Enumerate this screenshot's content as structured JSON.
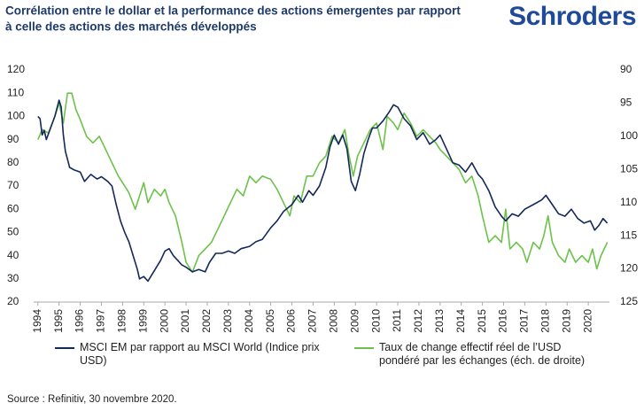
{
  "brand": "Schroders",
  "source": "Source : Refinitiv, 30 novembre 2020.",
  "chart_data": {
    "type": "line",
    "title": [
      "Corrélation entre le dollar et la performance des actions émergentes par rapport",
      "à celle des actions des marchés développés"
    ],
    "xlim": [
      1993.8,
      2021.0
    ],
    "xticks": [
      1994,
      1995,
      1996,
      1997,
      1998,
      1999,
      2000,
      2001,
      2002,
      2003,
      2004,
      2005,
      2006,
      2007,
      2008,
      2009,
      2010,
      2011,
      2012,
      2013,
      2014,
      2015,
      2016,
      2017,
      2018,
      2019,
      2020
    ],
    "ylim": [
      20,
      120
    ],
    "yticks": [
      20,
      30,
      40,
      50,
      60,
      70,
      80,
      90,
      100,
      110,
      120
    ],
    "y2lim": [
      125,
      90
    ],
    "y2ticks": [
      90,
      95,
      100,
      105,
      110,
      115,
      120,
      125
    ],
    "grid": false,
    "series": [
      {
        "name": "MSCI EM par rapport au MSCI World (Indice prix USD)",
        "color": "#14285a",
        "axis": "y",
        "x": [
          1994.0,
          1994.1,
          1994.2,
          1994.3,
          1994.4,
          1994.6,
          1994.8,
          1995.0,
          1995.1,
          1995.2,
          1995.3,
          1995.5,
          1995.7,
          1996.0,
          1996.2,
          1996.5,
          1996.8,
          1997.0,
          1997.3,
          1997.5,
          1997.7,
          1997.9,
          1998.1,
          1998.3,
          1998.5,
          1998.7,
          1998.8,
          1999.0,
          1999.2,
          1999.4,
          1999.6,
          1999.8,
          2000.0,
          2000.2,
          2000.4,
          2000.6,
          2000.8,
          2001.0,
          2001.3,
          2001.6,
          2001.9,
          2002.1,
          2002.4,
          2002.7,
          2003.0,
          2003.3,
          2003.6,
          2004.0,
          2004.3,
          2004.6,
          2005.0,
          2005.3,
          2005.6,
          2006.0,
          2006.3,
          2006.5,
          2006.8,
          2007.0,
          2007.3,
          2007.6,
          2007.8,
          2008.0,
          2008.2,
          2008.4,
          2008.6,
          2008.8,
          2009.0,
          2009.2,
          2009.4,
          2009.6,
          2009.8,
          2010.0,
          2010.3,
          2010.6,
          2010.8,
          2011.0,
          2011.3,
          2011.6,
          2011.9,
          2012.2,
          2012.5,
          2012.8,
          2013.0,
          2013.3,
          2013.6,
          2013.9,
          2014.2,
          2014.5,
          2014.8,
          2015.0,
          2015.3,
          2015.6,
          2015.9,
          2016.1,
          2016.4,
          2016.7,
          2017.0,
          2017.4,
          2017.8,
          2018.0,
          2018.3,
          2018.6,
          2018.9,
          2019.2,
          2019.5,
          2019.8,
          2020.1,
          2020.3,
          2020.5,
          2020.7,
          2020.9
        ],
        "values": [
          100,
          99,
          92,
          94,
          90,
          95,
          100,
          107,
          104,
          92,
          85,
          78,
          77,
          76,
          72,
          75,
          73,
          74,
          72,
          70,
          62,
          55,
          50,
          46,
          40,
          34,
          30,
          31,
          29,
          32,
          35,
          38,
          42,
          43,
          40,
          38,
          36,
          35,
          33,
          34,
          33,
          37,
          41,
          41,
          42,
          41,
          43,
          44,
          46,
          47,
          52,
          55,
          59,
          62,
          66,
          63,
          68,
          66,
          70,
          78,
          87,
          92,
          88,
          92,
          86,
          72,
          68,
          75,
          84,
          90,
          95,
          95,
          98,
          102,
          105,
          104,
          99,
          96,
          90,
          93,
          88,
          90,
          92,
          86,
          80,
          79,
          76,
          80,
          75,
          73,
          68,
          61,
          57,
          55,
          58,
          57,
          60,
          62,
          64,
          66,
          62,
          58,
          57,
          60,
          56,
          54,
          55,
          51,
          53,
          56,
          54
        ]
      },
      {
        "name": "Taux de change effectif réel de l’USD pondéré par les échanges (éch. de droite)",
        "color": "#6cc24a",
        "axis": "y2",
        "x": [
          1994.0,
          1994.2,
          1994.5,
          1994.8,
          1995.0,
          1995.2,
          1995.4,
          1995.6,
          1995.8,
          1996.0,
          1996.3,
          1996.6,
          1996.9,
          1997.2,
          1997.5,
          1997.8,
          1998.0,
          1998.3,
          1998.6,
          1998.8,
          1999.0,
          1999.2,
          1999.5,
          1999.8,
          2000.0,
          2000.2,
          2000.5,
          2000.8,
          2001.0,
          2001.3,
          2001.6,
          2001.9,
          2002.2,
          2002.5,
          2002.8,
          2003.1,
          2003.4,
          2003.7,
          2004.0,
          2004.3,
          2004.6,
          2005.0,
          2005.3,
          2005.6,
          2005.9,
          2006.1,
          2006.4,
          2006.7,
          2007.0,
          2007.3,
          2007.6,
          2007.9,
          2008.2,
          2008.5,
          2008.7,
          2008.9,
          2009.1,
          2009.4,
          2009.7,
          2010.0,
          2010.3,
          2010.5,
          2010.8,
          2011.0,
          2011.3,
          2011.6,
          2011.9,
          2012.2,
          2012.5,
          2012.8,
          2013.0,
          2013.3,
          2013.6,
          2013.9,
          2014.2,
          2014.5,
          2014.8,
          2015.0,
          2015.3,
          2015.6,
          2015.9,
          2016.1,
          2016.3,
          2016.6,
          2016.9,
          2017.1,
          2017.4,
          2017.7,
          2017.9,
          2018.1,
          2018.3,
          2018.6,
          2018.9,
          2019.1,
          2019.4,
          2019.7,
          2020.0,
          2020.2,
          2020.4,
          2020.6,
          2020.9
        ],
        "values": [
          100.5,
          99,
          99.5,
          97,
          95,
          98,
          93.5,
          93.5,
          96,
          97.5,
          100,
          101,
          100,
          102,
          104,
          106,
          107,
          108.5,
          111,
          109,
          107,
          110,
          108,
          109,
          108,
          110,
          112,
          116,
          119,
          120.5,
          118,
          117,
          116,
          114,
          112,
          110,
          108,
          109,
          106,
          107,
          106,
          106.5,
          108,
          110,
          112,
          109,
          110,
          106,
          106,
          104,
          103,
          100,
          101,
          99,
          103,
          106,
          103,
          101,
          99,
          98,
          102,
          97,
          98,
          99,
          96.5,
          98,
          100,
          99,
          100,
          101,
          102,
          103,
          104,
          105,
          107,
          106,
          109,
          112,
          116,
          115,
          116,
          111,
          117,
          116,
          117,
          119,
          116,
          117,
          115,
          112,
          116,
          118,
          119,
          117,
          119,
          118,
          119,
          117,
          120,
          118,
          116
        ]
      }
    ]
  }
}
